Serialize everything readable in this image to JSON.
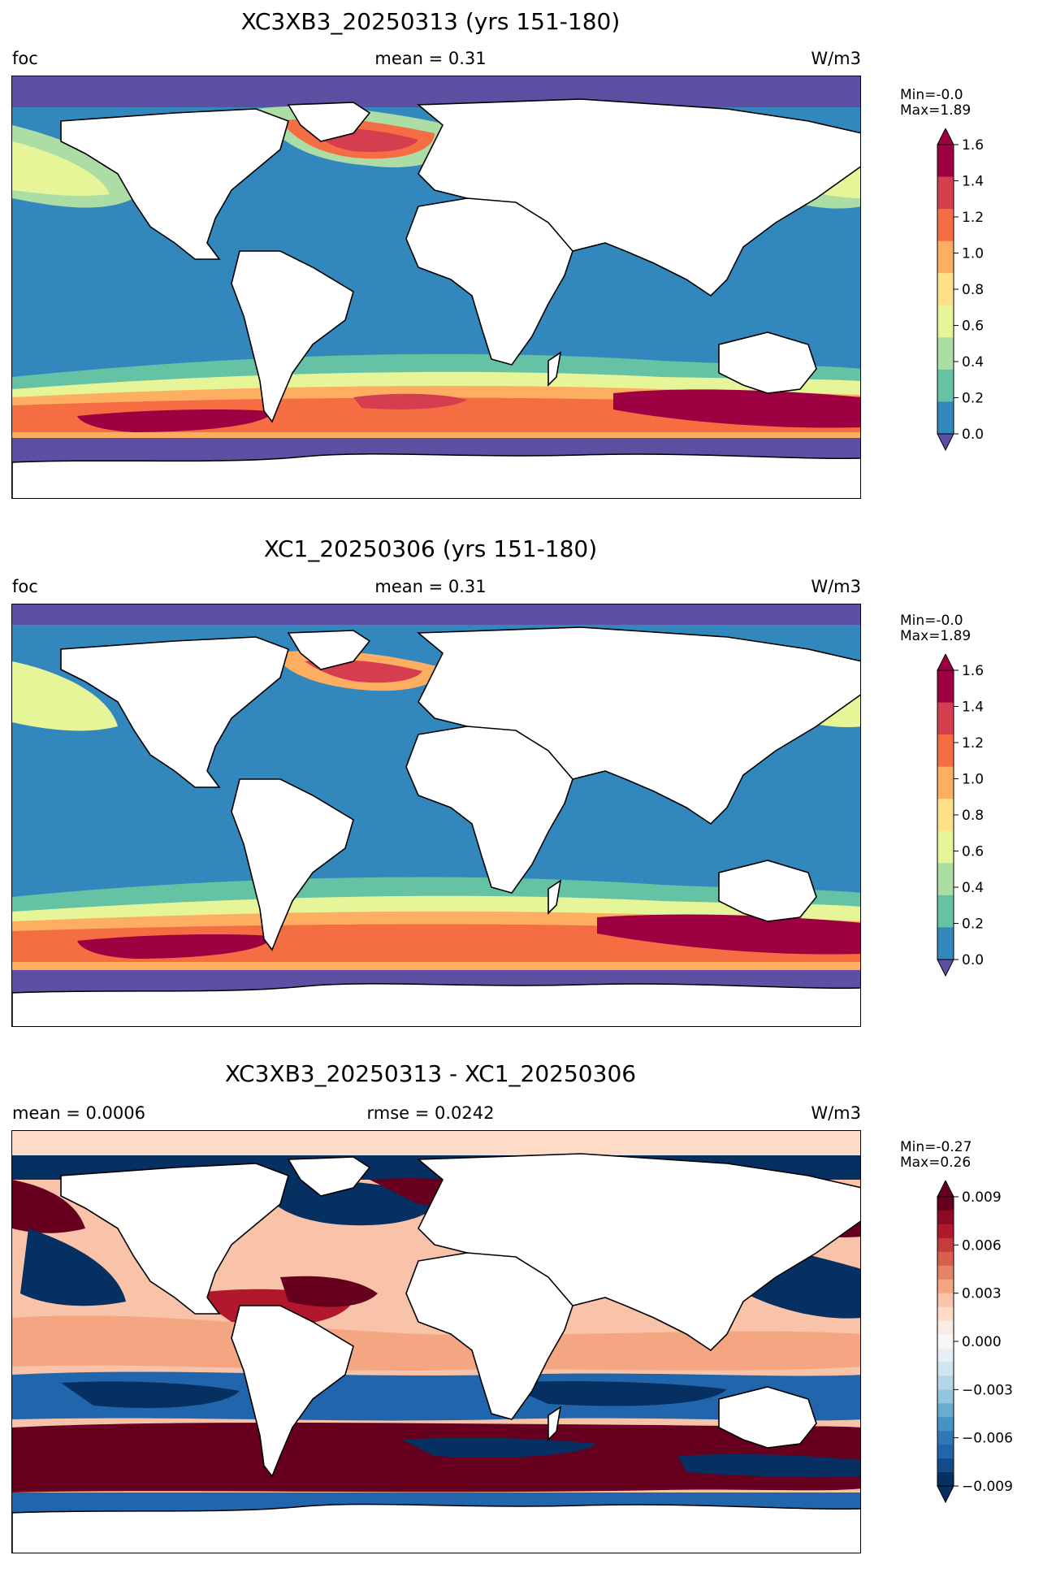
{
  "panels": [
    {
      "title": "XC3XB3_20250313 (yrs 151-180)",
      "left_label": "foc",
      "center_label": "mean = 0.31",
      "right_label": "W/m3",
      "min_label": "Min=-0.0",
      "max_label": "Max=1.89",
      "colorbar": {
        "ticks": [
          "1.6",
          "1.4",
          "1.2",
          "1.0",
          "0.8",
          "0.6",
          "0.4",
          "0.2",
          "0.0"
        ],
        "colors_top_to_bottom": [
          "#9e0142",
          "#d53e4f",
          "#f46d43",
          "#fdae61",
          "#fee08b",
          "#e6f598",
          "#abdda4",
          "#66c2a5",
          "#3288bd"
        ],
        "over_color": "#9e0142",
        "under_color": "#5e4fa2"
      }
    },
    {
      "title": "XC1_20250306 (yrs 151-180)",
      "left_label": "foc",
      "center_label": "mean = 0.31",
      "right_label": "W/m3",
      "min_label": "Min=-0.0",
      "max_label": "Max=1.89",
      "colorbar": {
        "ticks": [
          "1.6",
          "1.4",
          "1.2",
          "1.0",
          "0.8",
          "0.6",
          "0.4",
          "0.2",
          "0.0"
        ],
        "colors_top_to_bottom": [
          "#9e0142",
          "#d53e4f",
          "#f46d43",
          "#fdae61",
          "#fee08b",
          "#e6f598",
          "#abdda4",
          "#66c2a5",
          "#3288bd"
        ],
        "over_color": "#9e0142",
        "under_color": "#5e4fa2"
      }
    },
    {
      "title": "XC3XB3_20250313 - XC1_20250306",
      "left_label": "mean = 0.0006",
      "center_label": "rmse = 0.0242",
      "right_label": "W/m3",
      "min_label": "Min=-0.27",
      "max_label": "Max=0.26",
      "colorbar": {
        "ticks": [
          "0.009",
          "0.006",
          "0.003",
          "0.000",
          "−0.003",
          "−0.006",
          "−0.009"
        ],
        "colors_top_to_bottom": [
          "#67001f",
          "#8e0b26",
          "#b2182b",
          "#c43c3c",
          "#d6604d",
          "#e58267",
          "#f4a582",
          "#f8c3a9",
          "#fddbc7",
          "#f9ece5",
          "#f7f7f7",
          "#e7f0f4",
          "#d1e5f0",
          "#b4d6e8",
          "#92c5de",
          "#6aacd0",
          "#4393c3",
          "#3078b5",
          "#2166ac",
          "#134c88",
          "#053061"
        ],
        "over_color": "#67001f",
        "under_color": "#053061"
      }
    }
  ]
}
